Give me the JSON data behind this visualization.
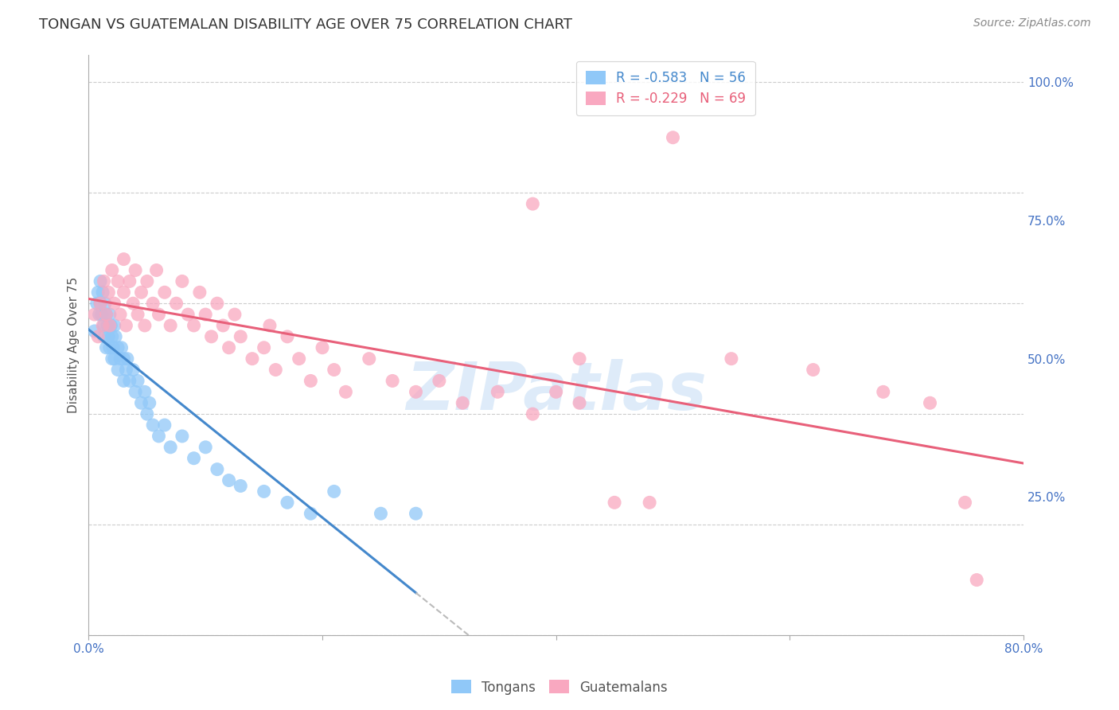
{
  "title": "TONGAN VS GUATEMALAN DISABILITY AGE OVER 75 CORRELATION CHART",
  "source": "Source: ZipAtlas.com",
  "ylabel": "Disability Age Over 75",
  "x_min": 0.0,
  "x_max": 0.8,
  "y_min": 0.0,
  "y_max": 1.05,
  "y_ticks": [
    0.25,
    0.5,
    0.75,
    1.0
  ],
  "y_tick_labels": [
    "25.0%",
    "50.0%",
    "75.0%",
    "100.0%"
  ],
  "tonga_R": -0.583,
  "tonga_N": 56,
  "guatemala_R": -0.229,
  "guatemala_N": 69,
  "tonga_color": "#90c8f8",
  "guatemala_color": "#f9a8c0",
  "tonga_line_color": "#4488cc",
  "guatemala_line_color": "#e8607a",
  "dashed_line_color": "#bbbbbb",
  "watermark": "ZIPatlas",
  "background_color": "#ffffff",
  "grid_color": "#cccccc",
  "tonga_scatter_x": [
    0.005,
    0.007,
    0.008,
    0.009,
    0.01,
    0.01,
    0.011,
    0.012,
    0.013,
    0.013,
    0.014,
    0.015,
    0.015,
    0.016,
    0.017,
    0.018,
    0.018,
    0.019,
    0.02,
    0.02,
    0.021,
    0.022,
    0.022,
    0.023,
    0.025,
    0.025,
    0.027,
    0.028,
    0.03,
    0.03,
    0.032,
    0.033,
    0.035,
    0.038,
    0.04,
    0.042,
    0.045,
    0.048,
    0.05,
    0.052,
    0.055,
    0.06,
    0.065,
    0.07,
    0.08,
    0.09,
    0.1,
    0.11,
    0.12,
    0.13,
    0.15,
    0.17,
    0.19,
    0.21,
    0.25,
    0.28
  ],
  "tonga_scatter_y": [
    0.55,
    0.6,
    0.62,
    0.58,
    0.64,
    0.6,
    0.58,
    0.62,
    0.56,
    0.54,
    0.6,
    0.58,
    0.52,
    0.56,
    0.54,
    0.58,
    0.52,
    0.56,
    0.54,
    0.5,
    0.52,
    0.56,
    0.5,
    0.54,
    0.52,
    0.48,
    0.5,
    0.52,
    0.5,
    0.46,
    0.48,
    0.5,
    0.46,
    0.48,
    0.44,
    0.46,
    0.42,
    0.44,
    0.4,
    0.42,
    0.38,
    0.36,
    0.38,
    0.34,
    0.36,
    0.32,
    0.34,
    0.3,
    0.28,
    0.27,
    0.26,
    0.24,
    0.22,
    0.26,
    0.22,
    0.22
  ],
  "guatemala_scatter_x": [
    0.005,
    0.008,
    0.01,
    0.012,
    0.013,
    0.015,
    0.017,
    0.018,
    0.02,
    0.022,
    0.025,
    0.027,
    0.03,
    0.03,
    0.032,
    0.035,
    0.038,
    0.04,
    0.042,
    0.045,
    0.048,
    0.05,
    0.055,
    0.058,
    0.06,
    0.065,
    0.07,
    0.075,
    0.08,
    0.085,
    0.09,
    0.095,
    0.1,
    0.105,
    0.11,
    0.115,
    0.12,
    0.125,
    0.13,
    0.14,
    0.15,
    0.155,
    0.16,
    0.17,
    0.18,
    0.19,
    0.2,
    0.21,
    0.22,
    0.24,
    0.26,
    0.28,
    0.3,
    0.32,
    0.35,
    0.38,
    0.4,
    0.42,
    0.45,
    0.48,
    0.38,
    0.42,
    0.5,
    0.55,
    0.62,
    0.68,
    0.72,
    0.75,
    0.76
  ],
  "guatemala_scatter_y": [
    0.58,
    0.54,
    0.6,
    0.56,
    0.64,
    0.58,
    0.62,
    0.56,
    0.66,
    0.6,
    0.64,
    0.58,
    0.68,
    0.62,
    0.56,
    0.64,
    0.6,
    0.66,
    0.58,
    0.62,
    0.56,
    0.64,
    0.6,
    0.66,
    0.58,
    0.62,
    0.56,
    0.6,
    0.64,
    0.58,
    0.56,
    0.62,
    0.58,
    0.54,
    0.6,
    0.56,
    0.52,
    0.58,
    0.54,
    0.5,
    0.52,
    0.56,
    0.48,
    0.54,
    0.5,
    0.46,
    0.52,
    0.48,
    0.44,
    0.5,
    0.46,
    0.44,
    0.46,
    0.42,
    0.44,
    0.4,
    0.44,
    0.42,
    0.24,
    0.24,
    0.78,
    0.5,
    0.9,
    0.5,
    0.48,
    0.44,
    0.42,
    0.24,
    0.1
  ]
}
